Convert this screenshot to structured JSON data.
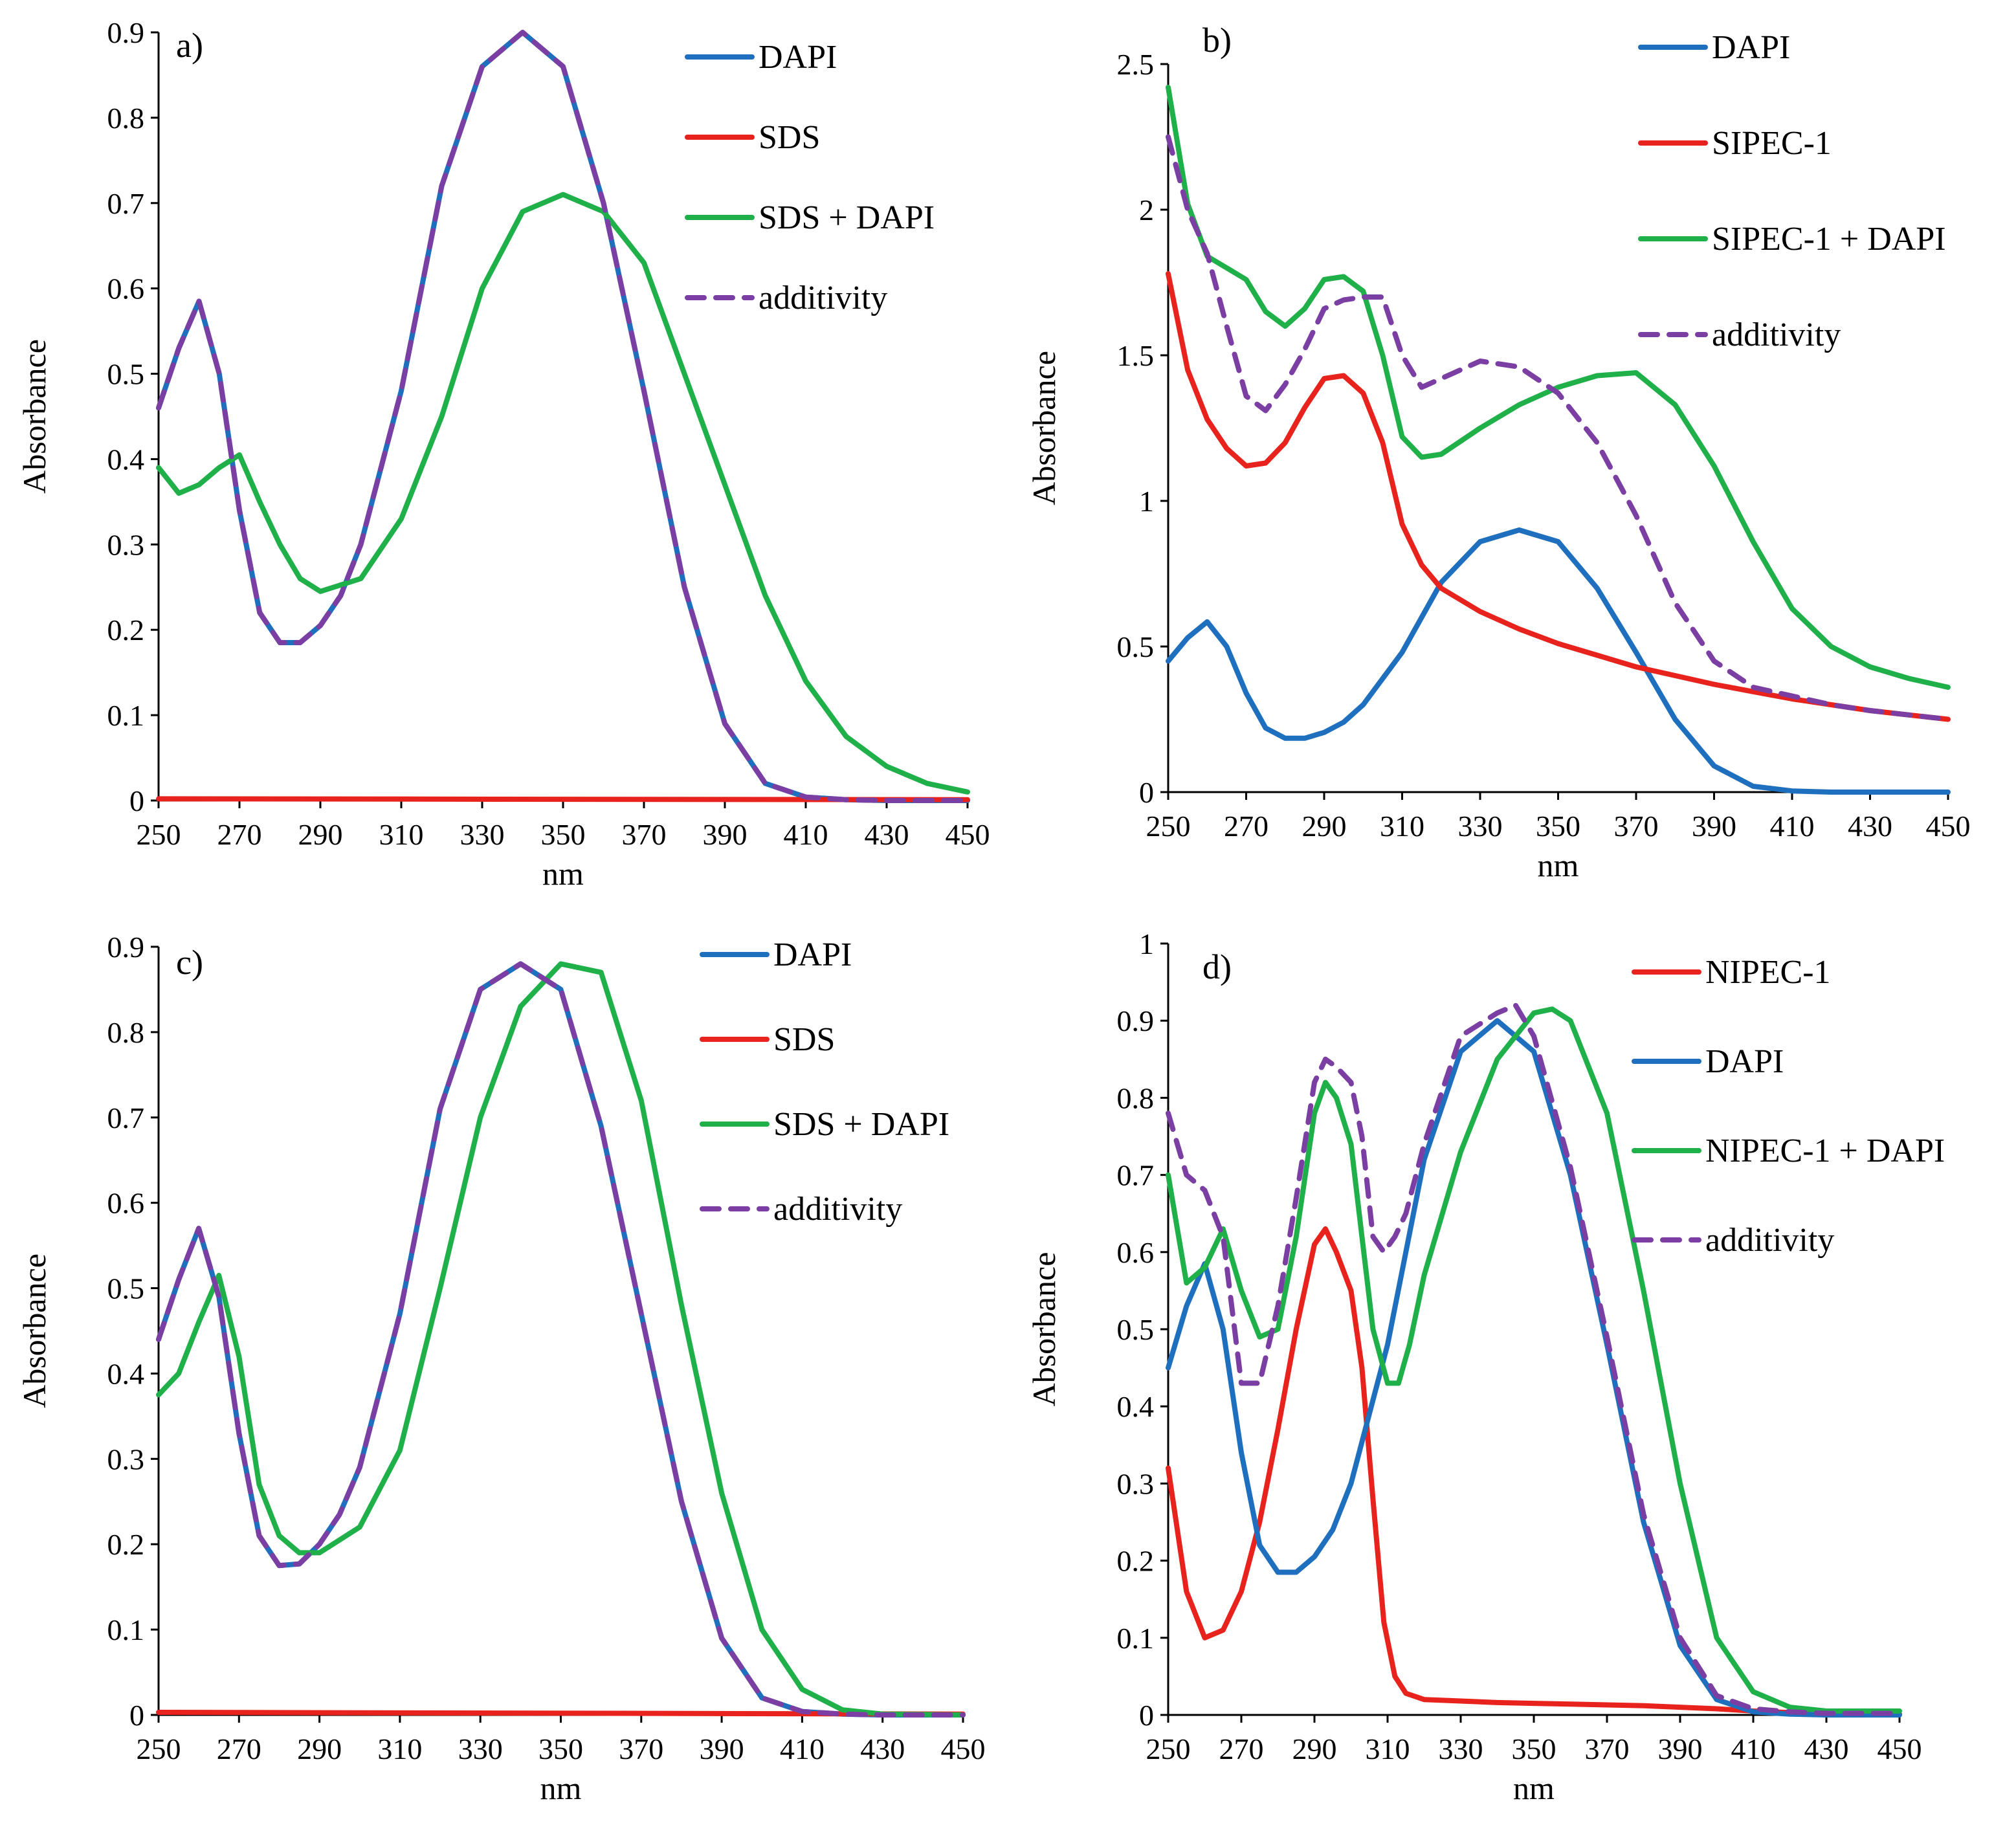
{
  "chart_data": [
    {
      "type": "line",
      "panel_label": "a)",
      "xlabel": "nm",
      "ylabel": "Absorbance",
      "xlim": [
        250,
        450
      ],
      "ylim": [
        0,
        0.9
      ],
      "xticks": [
        "250",
        "270",
        "290",
        "310",
        "330",
        "350",
        "370",
        "390",
        "410",
        "430",
        "450"
      ],
      "yticks": [
        "0",
        "0.1",
        "0.2",
        "0.3",
        "0.4",
        "0.5",
        "0.6",
        "0.7",
        "0.8",
        "0.9"
      ],
      "legend": "top-right",
      "series": [
        {
          "name": "DAPI",
          "color": "#1f6fbf",
          "dash": false,
          "x": [
            250,
            255,
            260,
            265,
            270,
            275,
            280,
            285,
            290,
            295,
            300,
            310,
            320,
            330,
            340,
            350,
            360,
            370,
            380,
            390,
            400,
            410,
            420,
            430,
            450
          ],
          "y": [
            0.46,
            0.53,
            0.585,
            0.5,
            0.34,
            0.22,
            0.185,
            0.185,
            0.205,
            0.24,
            0.3,
            0.48,
            0.72,
            0.86,
            0.9,
            0.86,
            0.7,
            0.48,
            0.25,
            0.09,
            0.02,
            0.004,
            0.001,
            0,
            0
          ]
        },
        {
          "name": "SDS",
          "color": "#e8231d",
          "dash": false,
          "x": [
            250,
            450
          ],
          "y": [
            0.002,
            0.001
          ]
        },
        {
          "name": "SDS + DAPI",
          "color": "#1fb04a",
          "dash": false,
          "x": [
            250,
            255,
            260,
            265,
            270,
            275,
            280,
            285,
            290,
            300,
            310,
            320,
            330,
            340,
            350,
            360,
            370,
            380,
            390,
            400,
            410,
            420,
            430,
            440,
            450
          ],
          "y": [
            0.39,
            0.36,
            0.37,
            0.39,
            0.405,
            0.35,
            0.3,
            0.26,
            0.245,
            0.26,
            0.33,
            0.45,
            0.6,
            0.69,
            0.71,
            0.69,
            0.63,
            0.5,
            0.37,
            0.24,
            0.14,
            0.075,
            0.04,
            0.02,
            0.01
          ]
        },
        {
          "name": "additivity",
          "color": "#7b3fa3",
          "dash": true,
          "x": [
            250,
            255,
            260,
            265,
            270,
            275,
            280,
            285,
            290,
            295,
            300,
            310,
            320,
            330,
            340,
            350,
            360,
            370,
            380,
            390,
            400,
            410,
            420,
            430,
            450
          ],
          "y": [
            0.46,
            0.53,
            0.585,
            0.5,
            0.34,
            0.22,
            0.185,
            0.185,
            0.205,
            0.24,
            0.3,
            0.48,
            0.72,
            0.86,
            0.9,
            0.86,
            0.7,
            0.48,
            0.25,
            0.09,
            0.02,
            0.004,
            0.001,
            0,
            0
          ]
        }
      ]
    },
    {
      "type": "line",
      "panel_label": "b)",
      "xlabel": "nm",
      "ylabel": "Absorbance",
      "xlim": [
        250,
        450
      ],
      "ylim": [
        0,
        2.5
      ],
      "xticks": [
        "250",
        "270",
        "290",
        "310",
        "330",
        "350",
        "370",
        "390",
        "410",
        "430",
        "450"
      ],
      "yticks": [
        "0",
        "0.5",
        "1",
        "1.5",
        "2",
        "2.5"
      ],
      "legend": "top-right",
      "series": [
        {
          "name": "DAPI",
          "color": "#1f6fbf",
          "dash": false,
          "x": [
            250,
            255,
            260,
            265,
            270,
            275,
            280,
            285,
            290,
            295,
            300,
            310,
            320,
            330,
            340,
            350,
            360,
            370,
            380,
            390,
            400,
            410,
            420,
            450
          ],
          "y": [
            0.45,
            0.53,
            0.585,
            0.5,
            0.34,
            0.22,
            0.185,
            0.185,
            0.205,
            0.24,
            0.3,
            0.48,
            0.72,
            0.86,
            0.9,
            0.86,
            0.7,
            0.48,
            0.25,
            0.09,
            0.02,
            0.004,
            0,
            0
          ]
        },
        {
          "name": "SIPEC-1",
          "color": "#e8231d",
          "dash": false,
          "x": [
            250,
            255,
            260,
            265,
            270,
            275,
            280,
            285,
            290,
            295,
            300,
            305,
            310,
            315,
            320,
            330,
            340,
            350,
            360,
            370,
            380,
            390,
            400,
            410,
            420,
            430,
            440,
            450
          ],
          "y": [
            1.78,
            1.45,
            1.28,
            1.18,
            1.12,
            1.13,
            1.2,
            1.32,
            1.42,
            1.43,
            1.37,
            1.2,
            0.92,
            0.78,
            0.7,
            0.62,
            0.56,
            0.51,
            0.47,
            0.43,
            0.4,
            0.37,
            0.345,
            0.32,
            0.3,
            0.28,
            0.265,
            0.25
          ]
        },
        {
          "name": "SIPEC-1 + DAPI",
          "color": "#1fb04a",
          "dash": false,
          "x": [
            250,
            255,
            260,
            265,
            270,
            275,
            280,
            285,
            290,
            295,
            300,
            305,
            310,
            315,
            320,
            330,
            340,
            350,
            360,
            370,
            380,
            390,
            400,
            410,
            420,
            430,
            440,
            450
          ],
          "y": [
            2.42,
            2.02,
            1.84,
            1.8,
            1.76,
            1.65,
            1.6,
            1.66,
            1.76,
            1.77,
            1.72,
            1.5,
            1.22,
            1.15,
            1.16,
            1.25,
            1.33,
            1.39,
            1.43,
            1.44,
            1.33,
            1.12,
            0.86,
            0.63,
            0.5,
            0.43,
            0.39,
            0.36
          ]
        },
        {
          "name": "additivity",
          "color": "#7b3fa3",
          "dash": true,
          "x": [
            250,
            255,
            260,
            265,
            270,
            275,
            280,
            285,
            290,
            295,
            300,
            305,
            310,
            315,
            320,
            330,
            340,
            350,
            360,
            370,
            380,
            390,
            400,
            410,
            420,
            430,
            440,
            450
          ],
          "y": [
            2.25,
            2.0,
            1.85,
            1.6,
            1.36,
            1.31,
            1.4,
            1.52,
            1.66,
            1.69,
            1.7,
            1.7,
            1.5,
            1.39,
            1.42,
            1.48,
            1.46,
            1.37,
            1.2,
            0.95,
            0.65,
            0.45,
            0.36,
            0.33,
            0.3,
            0.28,
            0.265,
            0.25
          ]
        }
      ]
    },
    {
      "type": "line",
      "panel_label": "c)",
      "xlabel": "nm",
      "ylabel": "Absorbance",
      "xlim": [
        250,
        450
      ],
      "ylim": [
        0,
        0.9
      ],
      "xticks": [
        "250",
        "270",
        "290",
        "310",
        "330",
        "350",
        "370",
        "390",
        "410",
        "430",
        "450"
      ],
      "yticks": [
        "0",
        "0.1",
        "0.2",
        "0.3",
        "0.4",
        "0.5",
        "0.6",
        "0.7",
        "0.8",
        "0.9"
      ],
      "legend": "top-right",
      "series": [
        {
          "name": "DAPI",
          "color": "#1f6fbf",
          "dash": false,
          "x": [
            250,
            255,
            260,
            265,
            270,
            275,
            280,
            285,
            290,
            295,
            300,
            310,
            320,
            330,
            340,
            350,
            360,
            370,
            380,
            390,
            400,
            410,
            420,
            430,
            450
          ],
          "y": [
            0.44,
            0.51,
            0.57,
            0.49,
            0.33,
            0.21,
            0.175,
            0.177,
            0.2,
            0.235,
            0.29,
            0.47,
            0.71,
            0.85,
            0.88,
            0.85,
            0.69,
            0.47,
            0.25,
            0.09,
            0.02,
            0.004,
            0.001,
            0,
            0
          ]
        },
        {
          "name": "SDS",
          "color": "#e8231d",
          "dash": false,
          "x": [
            250,
            450
          ],
          "y": [
            0.003,
            0.001
          ]
        },
        {
          "name": "SDS + DAPI",
          "color": "#1fb04a",
          "dash": false,
          "x": [
            250,
            255,
            260,
            265,
            270,
            275,
            280,
            285,
            290,
            300,
            310,
            320,
            330,
            340,
            350,
            360,
            370,
            380,
            390,
            400,
            410,
            420,
            430,
            450
          ],
          "y": [
            0.375,
            0.4,
            0.46,
            0.515,
            0.42,
            0.27,
            0.21,
            0.19,
            0.19,
            0.22,
            0.31,
            0.5,
            0.7,
            0.83,
            0.88,
            0.87,
            0.72,
            0.48,
            0.26,
            0.1,
            0.03,
            0.006,
            0.001,
            0
          ]
        },
        {
          "name": "additivity",
          "color": "#7b3fa3",
          "dash": true,
          "x": [
            250,
            255,
            260,
            265,
            270,
            275,
            280,
            285,
            290,
            295,
            300,
            310,
            320,
            330,
            340,
            350,
            360,
            370,
            380,
            390,
            400,
            410,
            420,
            430,
            450
          ],
          "y": [
            0.44,
            0.51,
            0.57,
            0.49,
            0.33,
            0.21,
            0.175,
            0.177,
            0.2,
            0.235,
            0.29,
            0.47,
            0.71,
            0.85,
            0.88,
            0.85,
            0.69,
            0.47,
            0.25,
            0.09,
            0.02,
            0.004,
            0.001,
            0,
            0
          ]
        }
      ]
    },
    {
      "type": "line",
      "panel_label": "d)",
      "xlabel": "nm",
      "ylabel": "Absorbance",
      "xlim": [
        250,
        450
      ],
      "ylim": [
        0,
        1
      ],
      "xticks": [
        "250",
        "270",
        "290",
        "310",
        "330",
        "350",
        "370",
        "390",
        "410",
        "430",
        "450"
      ],
      "yticks": [
        "0",
        "0.1",
        "0.2",
        "0.3",
        "0.4",
        "0.5",
        "0.6",
        "0.7",
        "0.8",
        "0.9",
        "1"
      ],
      "legend": "top-right",
      "series": [
        {
          "name": "NIPEC-1",
          "color": "#e8231d",
          "dash": false,
          "x": [
            250,
            255,
            260,
            265,
            270,
            275,
            280,
            285,
            290,
            293,
            296,
            300,
            303,
            306,
            309,
            312,
            315,
            320,
            330,
            340,
            350,
            360,
            370,
            380,
            390,
            400,
            410,
            420,
            430,
            450
          ],
          "y": [
            0.32,
            0.16,
            0.1,
            0.11,
            0.16,
            0.25,
            0.37,
            0.5,
            0.61,
            0.63,
            0.6,
            0.55,
            0.45,
            0.28,
            0.12,
            0.05,
            0.028,
            0.02,
            0.018,
            0.016,
            0.015,
            0.014,
            0.013,
            0.012,
            0.01,
            0.008,
            0.005,
            0.003,
            0.002,
            0.001
          ]
        },
        {
          "name": "DAPI",
          "color": "#1f6fbf",
          "dash": false,
          "x": [
            250,
            255,
            260,
            265,
            270,
            275,
            280,
            285,
            290,
            295,
            300,
            310,
            320,
            330,
            340,
            350,
            360,
            370,
            380,
            390,
            400,
            410,
            420,
            430,
            450
          ],
          "y": [
            0.45,
            0.53,
            0.585,
            0.5,
            0.34,
            0.22,
            0.185,
            0.185,
            0.205,
            0.24,
            0.3,
            0.48,
            0.72,
            0.86,
            0.9,
            0.86,
            0.7,
            0.48,
            0.25,
            0.09,
            0.02,
            0.004,
            0.001,
            0,
            0
          ]
        },
        {
          "name": "NIPEC-1 + DAPI",
          "color": "#1fb04a",
          "dash": false,
          "x": [
            250,
            255,
            260,
            265,
            270,
            275,
            280,
            285,
            290,
            293,
            296,
            300,
            303,
            306,
            310,
            313,
            316,
            320,
            330,
            340,
            350,
            355,
            360,
            370,
            380,
            390,
            400,
            410,
            420,
            430,
            450
          ],
          "y": [
            0.7,
            0.56,
            0.58,
            0.63,
            0.55,
            0.49,
            0.5,
            0.62,
            0.78,
            0.82,
            0.8,
            0.74,
            0.62,
            0.5,
            0.43,
            0.43,
            0.48,
            0.57,
            0.73,
            0.85,
            0.91,
            0.915,
            0.9,
            0.78,
            0.55,
            0.3,
            0.1,
            0.03,
            0.01,
            0.005,
            0.005
          ]
        },
        {
          "name": "additivity",
          "color": "#7b3fa3",
          "dash": true,
          "x": [
            250,
            255,
            260,
            265,
            270,
            275,
            280,
            285,
            290,
            293,
            296,
            300,
            303,
            306,
            309,
            312,
            315,
            320,
            330,
            340,
            345,
            350,
            360,
            370,
            380,
            390,
            400,
            410,
            420,
            430,
            450
          ],
          "y": [
            0.78,
            0.7,
            0.68,
            0.62,
            0.43,
            0.43,
            0.53,
            0.67,
            0.82,
            0.85,
            0.84,
            0.82,
            0.75,
            0.62,
            0.6,
            0.62,
            0.65,
            0.74,
            0.88,
            0.91,
            0.92,
            0.88,
            0.71,
            0.49,
            0.26,
            0.1,
            0.025,
            0.008,
            0.004,
            0.002,
            0.002
          ]
        }
      ]
    }
  ]
}
